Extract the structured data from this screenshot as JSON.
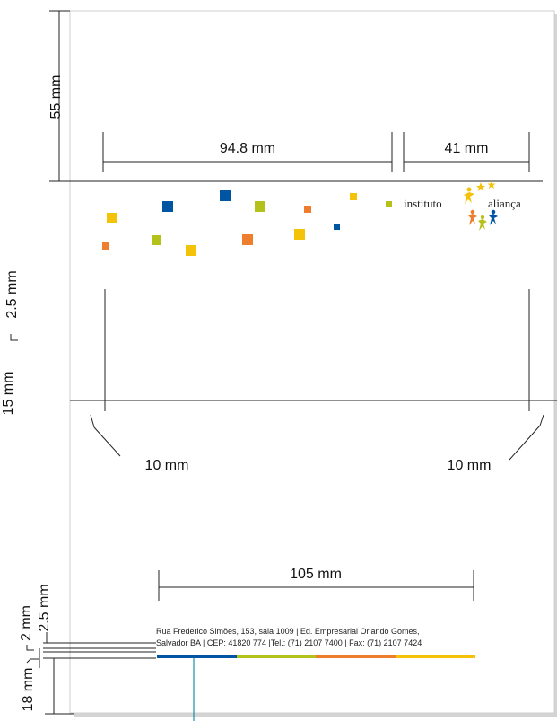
{
  "dimensions": {
    "top_margin": "55 mm",
    "logo_offset": "94.8 mm",
    "logo_width": "41 mm",
    "left_vertical_spacing": "2.5 mm",
    "left_partial": "15 mm",
    "fold_left": "10 mm",
    "fold_right": "10 mm",
    "footer_width": "105 mm",
    "footer_gap": "2.5 mm",
    "footer_text_height": "2 mm",
    "bottom_margin": "18 mm"
  },
  "logo": {
    "word1": "instituto",
    "word2": "aliança"
  },
  "footer": {
    "line1": "Rua Frederico Simões, 153, sala 1009  |  Ed. Empresarial Orlando Gomes,",
    "line2": "Salvador  BA | CEP: 41820 774  |Tel.: (71) 2107 7400 | Fax: (71) 2107 7424"
  },
  "colors": {
    "blue": "#0055a2",
    "green": "#b5c11b",
    "orange": "#ee7d2d",
    "yellow": "#f5c20a"
  }
}
